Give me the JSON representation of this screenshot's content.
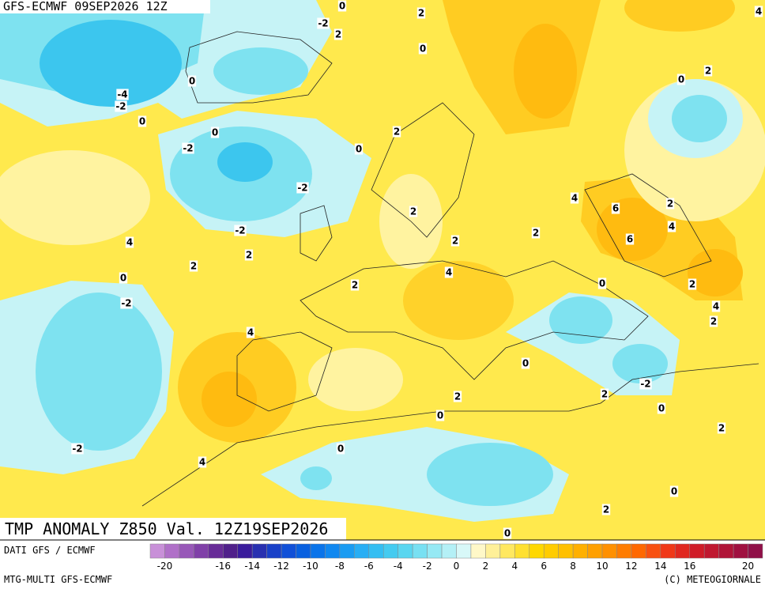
{
  "header": {
    "title": "GFS-ECMWF 09SEP2026 12Z"
  },
  "map": {
    "title": "TMP ANOMALY Z850 Val. 12Z19SEP2026",
    "labels": [
      "0",
      "-2",
      "2",
      "2",
      "0",
      "4",
      "0",
      "2",
      "0",
      "-4",
      "-2",
      "0",
      "0",
      "-2",
      "0",
      "2",
      "-2",
      "4",
      "6",
      "2",
      "4",
      "6",
      "2",
      "2",
      "2",
      "-2",
      "2",
      "4",
      "2",
      "4",
      "0",
      "-2",
      "2",
      "0",
      "2",
      "4",
      "2",
      "4",
      "0",
      "-2",
      "2",
      "2",
      "0",
      "0",
      "2",
      "-2",
      "0",
      "4",
      "0",
      "2",
      "0"
    ]
  },
  "footer": {
    "source": "DATI GFS / ECMWF",
    "model": "MTG-MULTI GFS-ECMWF",
    "copyright": "(C) METEOGIORNALE"
  },
  "colorbar": {
    "labels": [
      "-20",
      "-16",
      "-14",
      "-12",
      "-10",
      "-8",
      "-6",
      "-4",
      "-2",
      "0",
      "2",
      "4",
      "6",
      "8",
      "10",
      "12",
      "14",
      "16",
      "20"
    ],
    "colors": [
      "#c890d8",
      "#b070c8",
      "#9858b8",
      "#8040a8",
      "#682c98",
      "#50208a",
      "#3a1c9c",
      "#2830b0",
      "#1840c8",
      "#1050d8",
      "#0860e0",
      "#0a74ea",
      "#1088f0",
      "#1a9cf2",
      "#28aef4",
      "#34bef2",
      "#44cbf0",
      "#5ad6f0",
      "#78e0f2",
      "#96e9f4",
      "#b4f0f6",
      "#d8f8f8",
      "#fff8c8",
      "#fff098",
      "#ffe860",
      "#ffe030",
      "#ffd800",
      "#ffcc00",
      "#ffc000",
      "#ffb000",
      "#ffa000",
      "#ff9000",
      "#ff7c00",
      "#ff6800",
      "#f85010",
      "#f03818",
      "#e02820",
      "#d01c28",
      "#c01830",
      "#b01438",
      "#a01040",
      "#901048"
    ]
  }
}
